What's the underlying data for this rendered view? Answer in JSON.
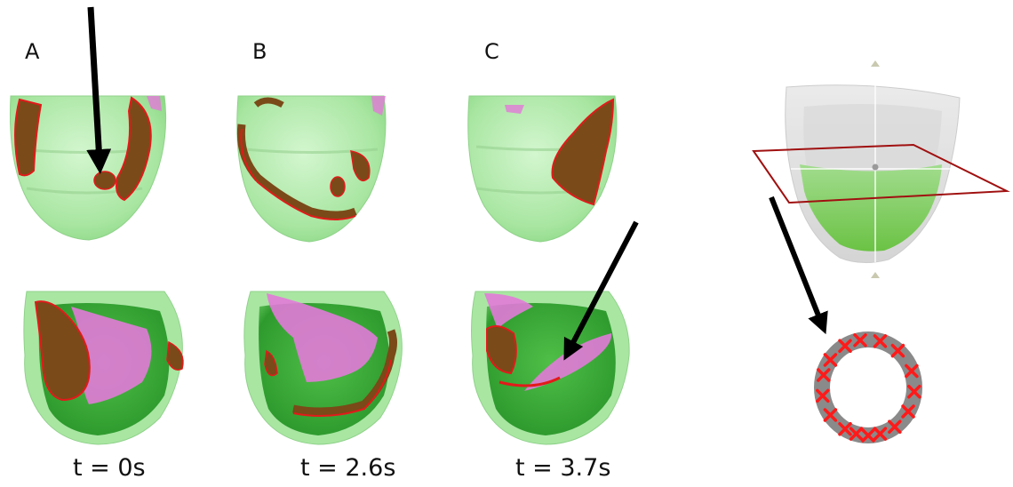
{
  "panels": [
    {
      "label": "A",
      "time": "t = 0s"
    },
    {
      "label": "B",
      "time": "t = 2.6s"
    },
    {
      "label": "C",
      "time": "t = 3.7s"
    }
  ],
  "colors": {
    "tissue": "#b6eeb0",
    "tissue_dark": "#2f9a2f",
    "tissue_mid": "#6fcf5f",
    "wavefront": "#7a4a18",
    "wavefront_edge": "#e21a1a",
    "magenta": "#e27ad8",
    "arrow": "#000000",
    "slice_plane": "#a01010",
    "ring": "#8a8a8a",
    "marker": "#ff1a1a"
  }
}
